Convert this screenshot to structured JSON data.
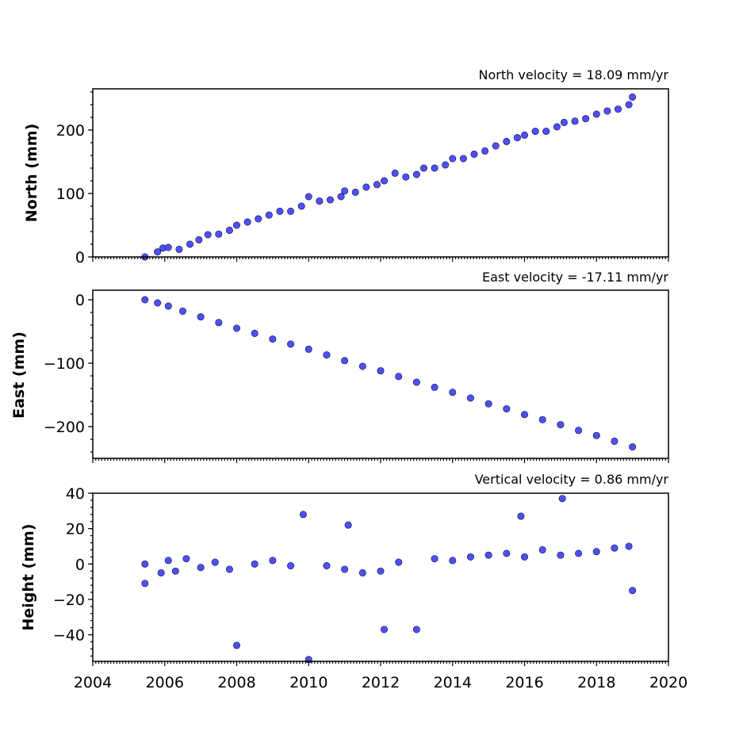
{
  "chart_data": [
    {
      "type": "scatter",
      "panel": "north",
      "title": "North velocity = 18.09 mm/yr",
      "ylabel": "North (mm)",
      "xlabel": "",
      "xlim": [
        2004,
        2020
      ],
      "ylim": [
        0,
        265
      ],
      "yticks": [
        0,
        100,
        200
      ],
      "ytick_labels": [
        "0",
        "100",
        "200"
      ],
      "grid": false,
      "series": [
        {
          "color": "#4f4fff",
          "x": [
            2005.45,
            2005.8,
            2005.95,
            2006.1,
            2006.4,
            2006.7,
            2006.95,
            2007.2,
            2007.5,
            2007.8,
            2008.0,
            2008.3,
            2008.6,
            2008.9,
            2009.2,
            2009.5,
            2009.8,
            2010.0,
            2010.3,
            2010.6,
            2010.9,
            2011.0,
            2011.3,
            2011.6,
            2011.9,
            2012.1,
            2012.4,
            2012.7,
            2013.0,
            2013.2,
            2013.5,
            2013.8,
            2014.0,
            2014.3,
            2014.6,
            2014.9,
            2015.2,
            2015.5,
            2015.8,
            2016.0,
            2016.3,
            2016.6,
            2016.9,
            2017.1,
            2017.4,
            2017.7,
            2018.0,
            2018.3,
            2018.6,
            2018.9,
            2019.0
          ],
          "y": [
            0,
            8,
            14,
            15,
            12,
            20,
            27,
            35,
            36,
            42,
            50,
            55,
            60,
            66,
            72,
            72,
            80,
            95,
            88,
            90,
            95,
            104,
            102,
            110,
            114,
            120,
            132,
            126,
            130,
            140,
            140,
            145,
            155,
            155,
            162,
            167,
            175,
            182,
            188,
            192,
            198,
            198,
            205,
            212,
            214,
            218,
            225,
            230,
            233,
            240,
            252
          ]
        }
      ]
    },
    {
      "type": "scatter",
      "panel": "east",
      "title": "East velocity = -17.11 mm/yr",
      "ylabel": "East (mm)",
      "xlabel": "",
      "xlim": [
        2004,
        2020
      ],
      "ylim": [
        -250,
        15
      ],
      "yticks": [
        0,
        -100,
        -200
      ],
      "ytick_labels": [
        "0",
        "−100",
        "−200"
      ],
      "grid": false,
      "series": [
        {
          "color": "#4f4fff",
          "x": [
            2005.45,
            2005.8,
            2006.1,
            2006.5,
            2007.0,
            2007.5,
            2008.0,
            2008.5,
            2009.0,
            2009.5,
            2010.0,
            2010.5,
            2011.0,
            2011.5,
            2012.0,
            2012.5,
            2013.0,
            2013.5,
            2014.0,
            2014.5,
            2015.0,
            2015.5,
            2016.0,
            2016.5,
            2017.0,
            2017.5,
            2018.0,
            2018.5,
            2019.0
          ],
          "y": [
            0,
            -5,
            -10,
            -18,
            -27,
            -36,
            -45,
            -53,
            -62,
            -70,
            -78,
            -87,
            -96,
            -105,
            -112,
            -121,
            -130,
            -138,
            -146,
            -155,
            -164,
            -172,
            -181,
            -189,
            -197,
            -206,
            -214,
            -223,
            -232
          ]
        }
      ]
    },
    {
      "type": "scatter",
      "panel": "height",
      "title": "Vertical velocity = 0.86 mm/yr",
      "ylabel": "Height (mm)",
      "xlabel": "",
      "xlim": [
        2004,
        2020
      ],
      "ylim": [
        -55,
        40
      ],
      "yticks": [
        40,
        20,
        0,
        -20,
        -40
      ],
      "ytick_labels": [
        "40",
        "20",
        "0",
        "−20",
        "−40"
      ],
      "grid": false,
      "series": [
        {
          "color": "#4f4fff",
          "x": [
            2005.45,
            2005.45,
            2005.9,
            2006.1,
            2006.3,
            2006.6,
            2007.0,
            2007.4,
            2007.8,
            2008.0,
            2008.5,
            2009.0,
            2009.5,
            2009.85,
            2010.0,
            2010.5,
            2011.0,
            2011.1,
            2011.5,
            2012.0,
            2012.1,
            2012.5,
            2013.0,
            2013.5,
            2014.0,
            2014.5,
            2015.0,
            2015.5,
            2015.9,
            2016.0,
            2016.5,
            2017.0,
            2017.05,
            2017.5,
            2018.0,
            2018.5,
            2018.9,
            2019.0
          ],
          "y": [
            0,
            -11,
            -5,
            2,
            -4,
            3,
            -2,
            1,
            -3,
            -46,
            0,
            2,
            -1,
            28,
            -54,
            -1,
            -3,
            22,
            -5,
            -4,
            -37,
            1,
            -37,
            3,
            2,
            4,
            5,
            6,
            27,
            4,
            8,
            5,
            37,
            6,
            7,
            9,
            10,
            -15
          ]
        }
      ]
    }
  ],
  "xaxis": {
    "tick_labels": [
      "2004",
      "2006",
      "2008",
      "2010",
      "2012",
      "2014",
      "2016",
      "2018",
      "2020"
    ]
  }
}
